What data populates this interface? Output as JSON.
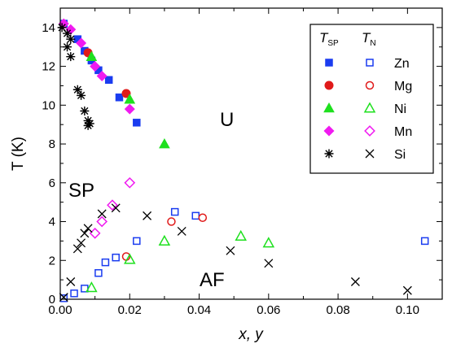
{
  "chart_data": {
    "type": "scatter",
    "xlabel": "x, y",
    "ylabel": "T (K)",
    "xlim": [
      0,
      0.11
    ],
    "ylim": [
      0,
      15
    ],
    "x_ticks": [
      "0.00",
      "0.02",
      "0.04",
      "0.06",
      "0.08",
      "0.10"
    ],
    "y_ticks": [
      "0",
      "2",
      "4",
      "6",
      "8",
      "10",
      "12",
      "14"
    ],
    "legend": {
      "placement": "top-right",
      "col_headers": [
        "T",
        "SP",
        "T",
        "N"
      ]
    },
    "region_labels": [
      "U",
      "SP",
      "AF"
    ],
    "series": [
      {
        "name": "Zn",
        "group": "T_SP",
        "marker": "square",
        "filled": true,
        "color": "#1a3cf0",
        "points": [
          [
            0.001,
            14.2
          ],
          [
            0.005,
            13.4
          ],
          [
            0.007,
            12.8
          ],
          [
            0.009,
            12.3
          ],
          [
            0.011,
            11.8
          ],
          [
            0.014,
            11.3
          ],
          [
            0.017,
            10.4
          ],
          [
            0.022,
            9.1
          ]
        ]
      },
      {
        "name": "Zn",
        "group": "T_N",
        "marker": "square",
        "filled": false,
        "color": "#1a3cf0",
        "points": [
          [
            0.001,
            0.05
          ],
          [
            0.004,
            0.3
          ],
          [
            0.007,
            0.55
          ],
          [
            0.011,
            1.35
          ],
          [
            0.013,
            1.9
          ],
          [
            0.016,
            2.15
          ],
          [
            0.022,
            3.0
          ],
          [
            0.033,
            4.5
          ],
          [
            0.039,
            4.3
          ],
          [
            0.105,
            3.0
          ]
        ]
      },
      {
        "name": "Mg",
        "group": "T_SP",
        "marker": "circle",
        "filled": true,
        "color": "#e01a1a",
        "points": [
          [
            0.008,
            12.7
          ],
          [
            0.019,
            10.6
          ]
        ]
      },
      {
        "name": "Mg",
        "group": "T_N",
        "marker": "circle",
        "filled": false,
        "color": "#e01a1a",
        "points": [
          [
            0.019,
            2.2
          ],
          [
            0.032,
            4.0
          ],
          [
            0.041,
            4.2
          ]
        ]
      },
      {
        "name": "Ni",
        "group": "T_SP",
        "marker": "triangle",
        "filled": true,
        "color": "#1ee01e",
        "points": [
          [
            0.009,
            12.5
          ],
          [
            0.02,
            10.3
          ],
          [
            0.03,
            8.0
          ]
        ]
      },
      {
        "name": "Ni",
        "group": "T_N",
        "marker": "triangle",
        "filled": false,
        "color": "#1ee01e",
        "points": [
          [
            0.009,
            0.6
          ],
          [
            0.02,
            2.05
          ],
          [
            0.03,
            3.0
          ],
          [
            0.052,
            3.25
          ],
          [
            0.06,
            2.9
          ]
        ]
      },
      {
        "name": "Mn",
        "group": "T_SP",
        "marker": "diamond",
        "filled": true,
        "color": "#f01af0",
        "points": [
          [
            0.001,
            14.2
          ],
          [
            0.003,
            13.9
          ],
          [
            0.006,
            13.2
          ],
          [
            0.01,
            12.0
          ],
          [
            0.012,
            11.5
          ],
          [
            0.02,
            9.8
          ]
        ]
      },
      {
        "name": "Mn",
        "group": "T_N",
        "marker": "diamond",
        "filled": false,
        "color": "#f01af0",
        "points": [
          [
            0.01,
            3.4
          ],
          [
            0.012,
            4.0
          ],
          [
            0.015,
            4.85
          ],
          [
            0.02,
            6.0
          ]
        ]
      },
      {
        "name": "Si",
        "group": "T_SP",
        "marker": "asterisk",
        "filled": true,
        "color": "#000000",
        "points": [
          [
            0.0005,
            14.0
          ],
          [
            0.002,
            13.7
          ],
          [
            0.003,
            13.4
          ],
          [
            0.002,
            13.0
          ],
          [
            0.003,
            12.5
          ],
          [
            0.005,
            10.8
          ],
          [
            0.006,
            10.5
          ],
          [
            0.007,
            9.7
          ],
          [
            0.008,
            9.2
          ],
          [
            0.008,
            8.95
          ],
          [
            0.0085,
            9.05
          ]
        ]
      },
      {
        "name": "Si",
        "group": "T_N",
        "marker": "cross",
        "filled": false,
        "color": "#000000",
        "points": [
          [
            0.001,
            0.1
          ],
          [
            0.003,
            0.9
          ],
          [
            0.005,
            2.6
          ],
          [
            0.006,
            2.9
          ],
          [
            0.007,
            3.4
          ],
          [
            0.008,
            3.65
          ],
          [
            0.012,
            4.4
          ],
          [
            0.016,
            4.7
          ],
          [
            0.025,
            4.3
          ],
          [
            0.035,
            3.5
          ],
          [
            0.049,
            2.5
          ],
          [
            0.06,
            1.85
          ],
          [
            0.085,
            0.9
          ],
          [
            0.1,
            0.45
          ]
        ]
      }
    ]
  }
}
